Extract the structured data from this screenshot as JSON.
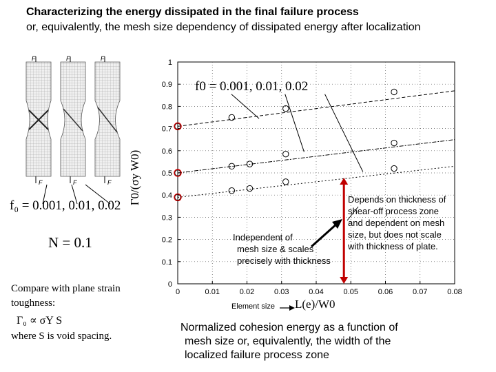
{
  "slide": {
    "title_line1": "Characterizing the energy dissipated in the final failure process",
    "title_line2": "or, equivalently, the mesh size dependency of dissipated energy after localization",
    "f0_values_left": "f₀ = 0.001,  0.01,  0.02",
    "n_value": "N = 0.1",
    "compare_line1": "Compare with plane strain",
    "compare_line2": "toughness:",
    "gamma_relation": "Γ₀ ∝ σY  S",
    "where_text": "where S is void spacing.",
    "specimen_force_label": "F",
    "annotation_left_line1": "Independent of",
    "annotation_left_line2": "mesh size & scales",
    "annotation_left_line3": "precisely with thickness",
    "annotation_right_line1": "Depends on thickness of",
    "annotation_right_line2": "shear-off process zone",
    "annotation_right_line3": "and dependent on mesh",
    "annotation_right_line4": "size, but does not scale",
    "annotation_right_line5": "with thickness of plate.",
    "element_size_label": "Element size",
    "caption_line1": "Normalized cohesion energy as a function of",
    "caption_line2": "mesh size or, equivalently, the width of the",
    "caption_line3": "localized failure process zone"
  },
  "chart_data": {
    "type": "scatter",
    "title": "",
    "xlabel": "L(e)/W0",
    "ylabel": "Γ0/(σy W0)",
    "xlim": [
      0,
      0.08
    ],
    "ylim": [
      0,
      1
    ],
    "xticks": [
      "0",
      "0.01",
      "0.02",
      "0.03",
      "0.04",
      "0.05",
      "0.06",
      "0.07",
      "0.08"
    ],
    "yticks": [
      "0",
      "0.1",
      "0.2",
      "0.3",
      "0.4",
      "0.5",
      "0.6",
      "0.7",
      "0.8",
      "0.9",
      "1"
    ],
    "legend_annotation": "f0 = 0.001,   0.01,   0.02",
    "series": [
      {
        "name": "f0 = 0.001",
        "x": [
          0.0,
          0.0156,
          0.0312,
          0.0625
        ],
        "y": [
          0.71,
          0.75,
          0.79,
          0.865
        ],
        "fit": [
          0.71,
          0.87
        ]
      },
      {
        "name": "f0 = 0.01",
        "x": [
          0.0,
          0.0156,
          0.0208,
          0.0312,
          0.0625
        ],
        "y": [
          0.5,
          0.53,
          0.54,
          0.585,
          0.635
        ],
        "fit": [
          0.5,
          0.65
        ]
      },
      {
        "name": "f0 = 0.02",
        "x": [
          0.0,
          0.0156,
          0.0208,
          0.0312,
          0.0625
        ],
        "y": [
          0.39,
          0.42,
          0.43,
          0.46,
          0.52
        ],
        "fit": [
          0.39,
          0.53
        ]
      }
    ],
    "highlight_x": 0.048
  }
}
